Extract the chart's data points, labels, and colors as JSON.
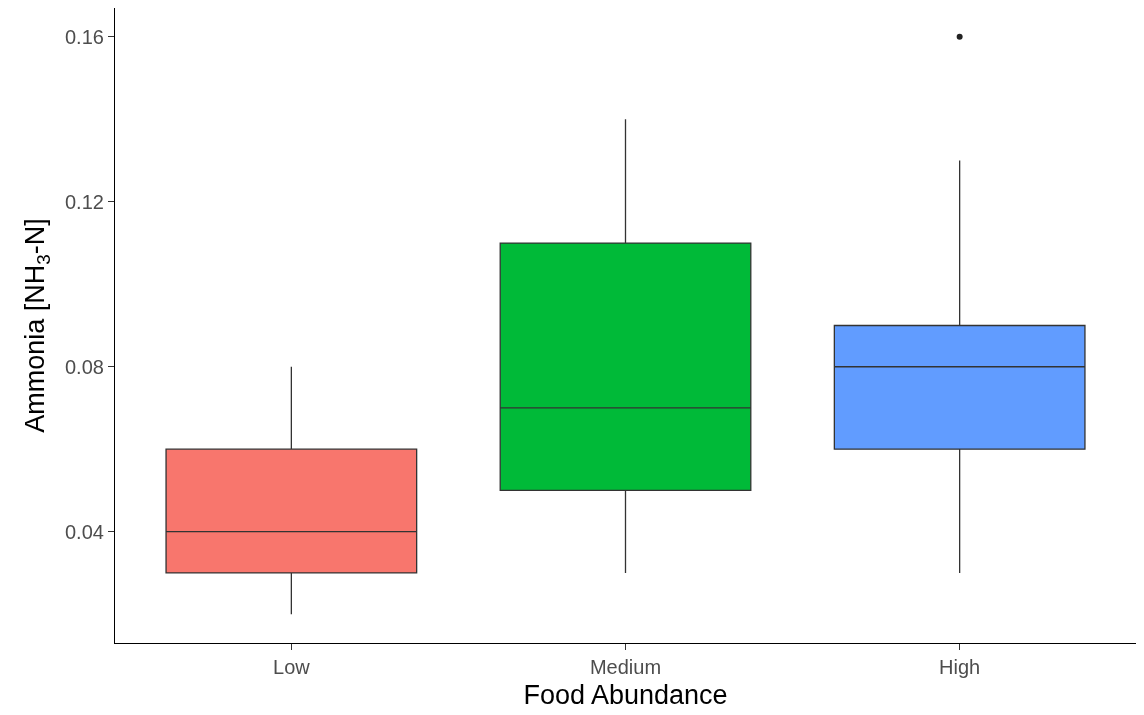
{
  "chart_data": {
    "type": "box",
    "xlabel": "Food Abundance",
    "ylabel": "Ammonia [NH$_{3}$-N]",
    "categories": [
      "Low",
      "Medium",
      "High"
    ],
    "colors": [
      "#f8766d",
      "#00ba38",
      "#619cff"
    ],
    "boxes": [
      {
        "low": 0.02,
        "q1": 0.03,
        "median": 0.04,
        "q3": 0.06,
        "high": 0.08
      },
      {
        "low": 0.03,
        "q1": 0.05,
        "median": 0.07,
        "q3": 0.11,
        "high": 0.14
      },
      {
        "low": 0.03,
        "q1": 0.06,
        "median": 0.08,
        "q3": 0.09,
        "high": 0.13,
        "outliers": [
          0.16
        ]
      }
    ],
    "ylim": [
      0.013,
      0.167
    ],
    "yticks": [
      0.04,
      0.08,
      0.12,
      0.16
    ],
    "grid": false
  }
}
